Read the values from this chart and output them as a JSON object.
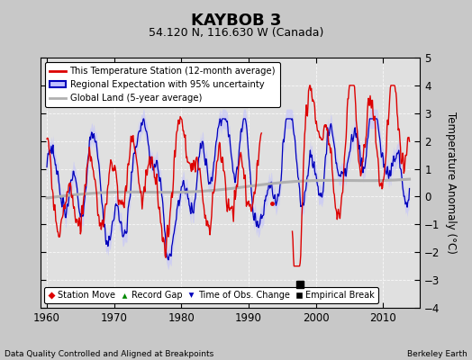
{
  "title": "KAYBOB 3",
  "subtitle": "54.120 N, 116.630 W (Canada)",
  "ylabel": "Temperature Anomaly (°C)",
  "xlabel_left": "Data Quality Controlled and Aligned at Breakpoints",
  "xlabel_right": "Berkeley Earth",
  "ylim": [
    -4,
    5
  ],
  "xlim": [
    1959.0,
    2015.5
  ],
  "xticks": [
    1960,
    1970,
    1980,
    1990,
    2000,
    2010
  ],
  "yticks": [
    -4,
    -3,
    -2,
    -1,
    0,
    1,
    2,
    3,
    4,
    5
  ],
  "bg_color": "#c8c8c8",
  "plot_bg_color": "#e0e0e0",
  "red_color": "#dd0000",
  "blue_color": "#0000bb",
  "blue_fill_color": "#c0c0ff",
  "gray_color": "#b0b0b0",
  "empirical_break_x": 1997.6,
  "empirical_break_y": -3.15,
  "red_dot_x": 1993.5,
  "red_dot_y": -0.25,
  "legend_labels": [
    "This Temperature Station (12-month average)",
    "Regional Expectation with 95% uncertainty",
    "Global Land (5-year average)"
  ],
  "bottom_legend": [
    "Station Move",
    "Record Gap",
    "Time of Obs. Change",
    "Empirical Break"
  ]
}
